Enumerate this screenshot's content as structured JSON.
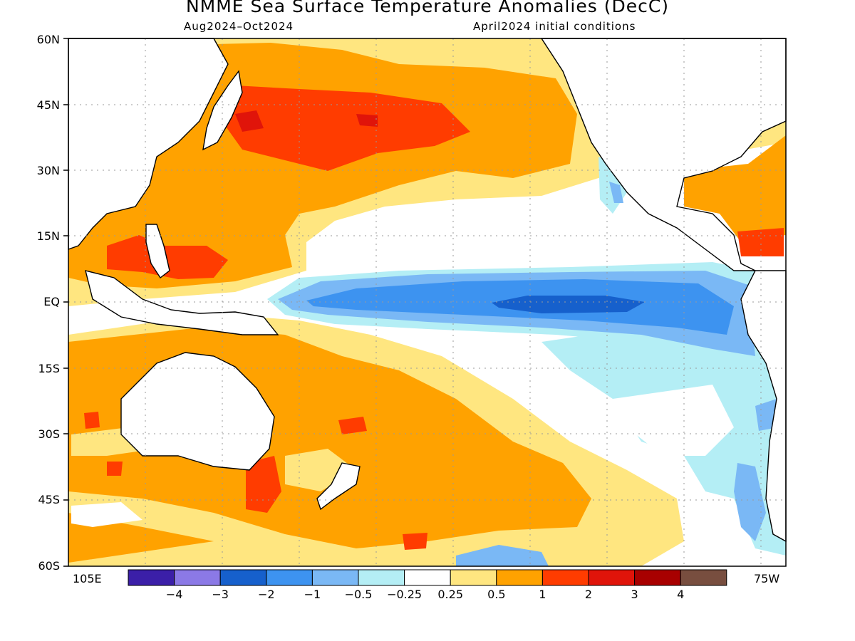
{
  "title": "NMME Sea Surface Temperature Anomalies (DecC)",
  "subtitle_left": "Aug2024–Oct2024",
  "subtitle_right": "April2024 initial conditions",
  "lat_labels": [
    "60N",
    "45N",
    "30N",
    "15N",
    "EQ",
    "15S",
    "30S",
    "45S",
    "60S"
  ],
  "lon_labels": {
    "west_edge": "105E",
    "east_edge": "75W"
  },
  "colorbar": {
    "colors": [
      "#3b1fa8",
      "#8b79e6",
      "#1660cc",
      "#3d93f0",
      "#7ab8f5",
      "#b4eef5",
      "#ffffff",
      "#ffe680",
      "#ffa200",
      "#ff3c00",
      "#e0140a",
      "#a80000",
      "#784e3f"
    ],
    "labels": [
      "−4",
      "−3",
      "−2",
      "−1",
      "−0.5",
      "−0.25",
      "0.25",
      "0.5",
      "1",
      "2",
      "3",
      "4"
    ]
  },
  "map_meta": {
    "lat_range": [
      -60,
      60
    ],
    "lon_range": [
      "105E",
      "75W"
    ],
    "grid": "dotted",
    "features": [
      "La Nina cold tongue along equatorial Pacific",
      "warm anomalies in North Pacific",
      "warm anomalies in South Pacific"
    ]
  }
}
